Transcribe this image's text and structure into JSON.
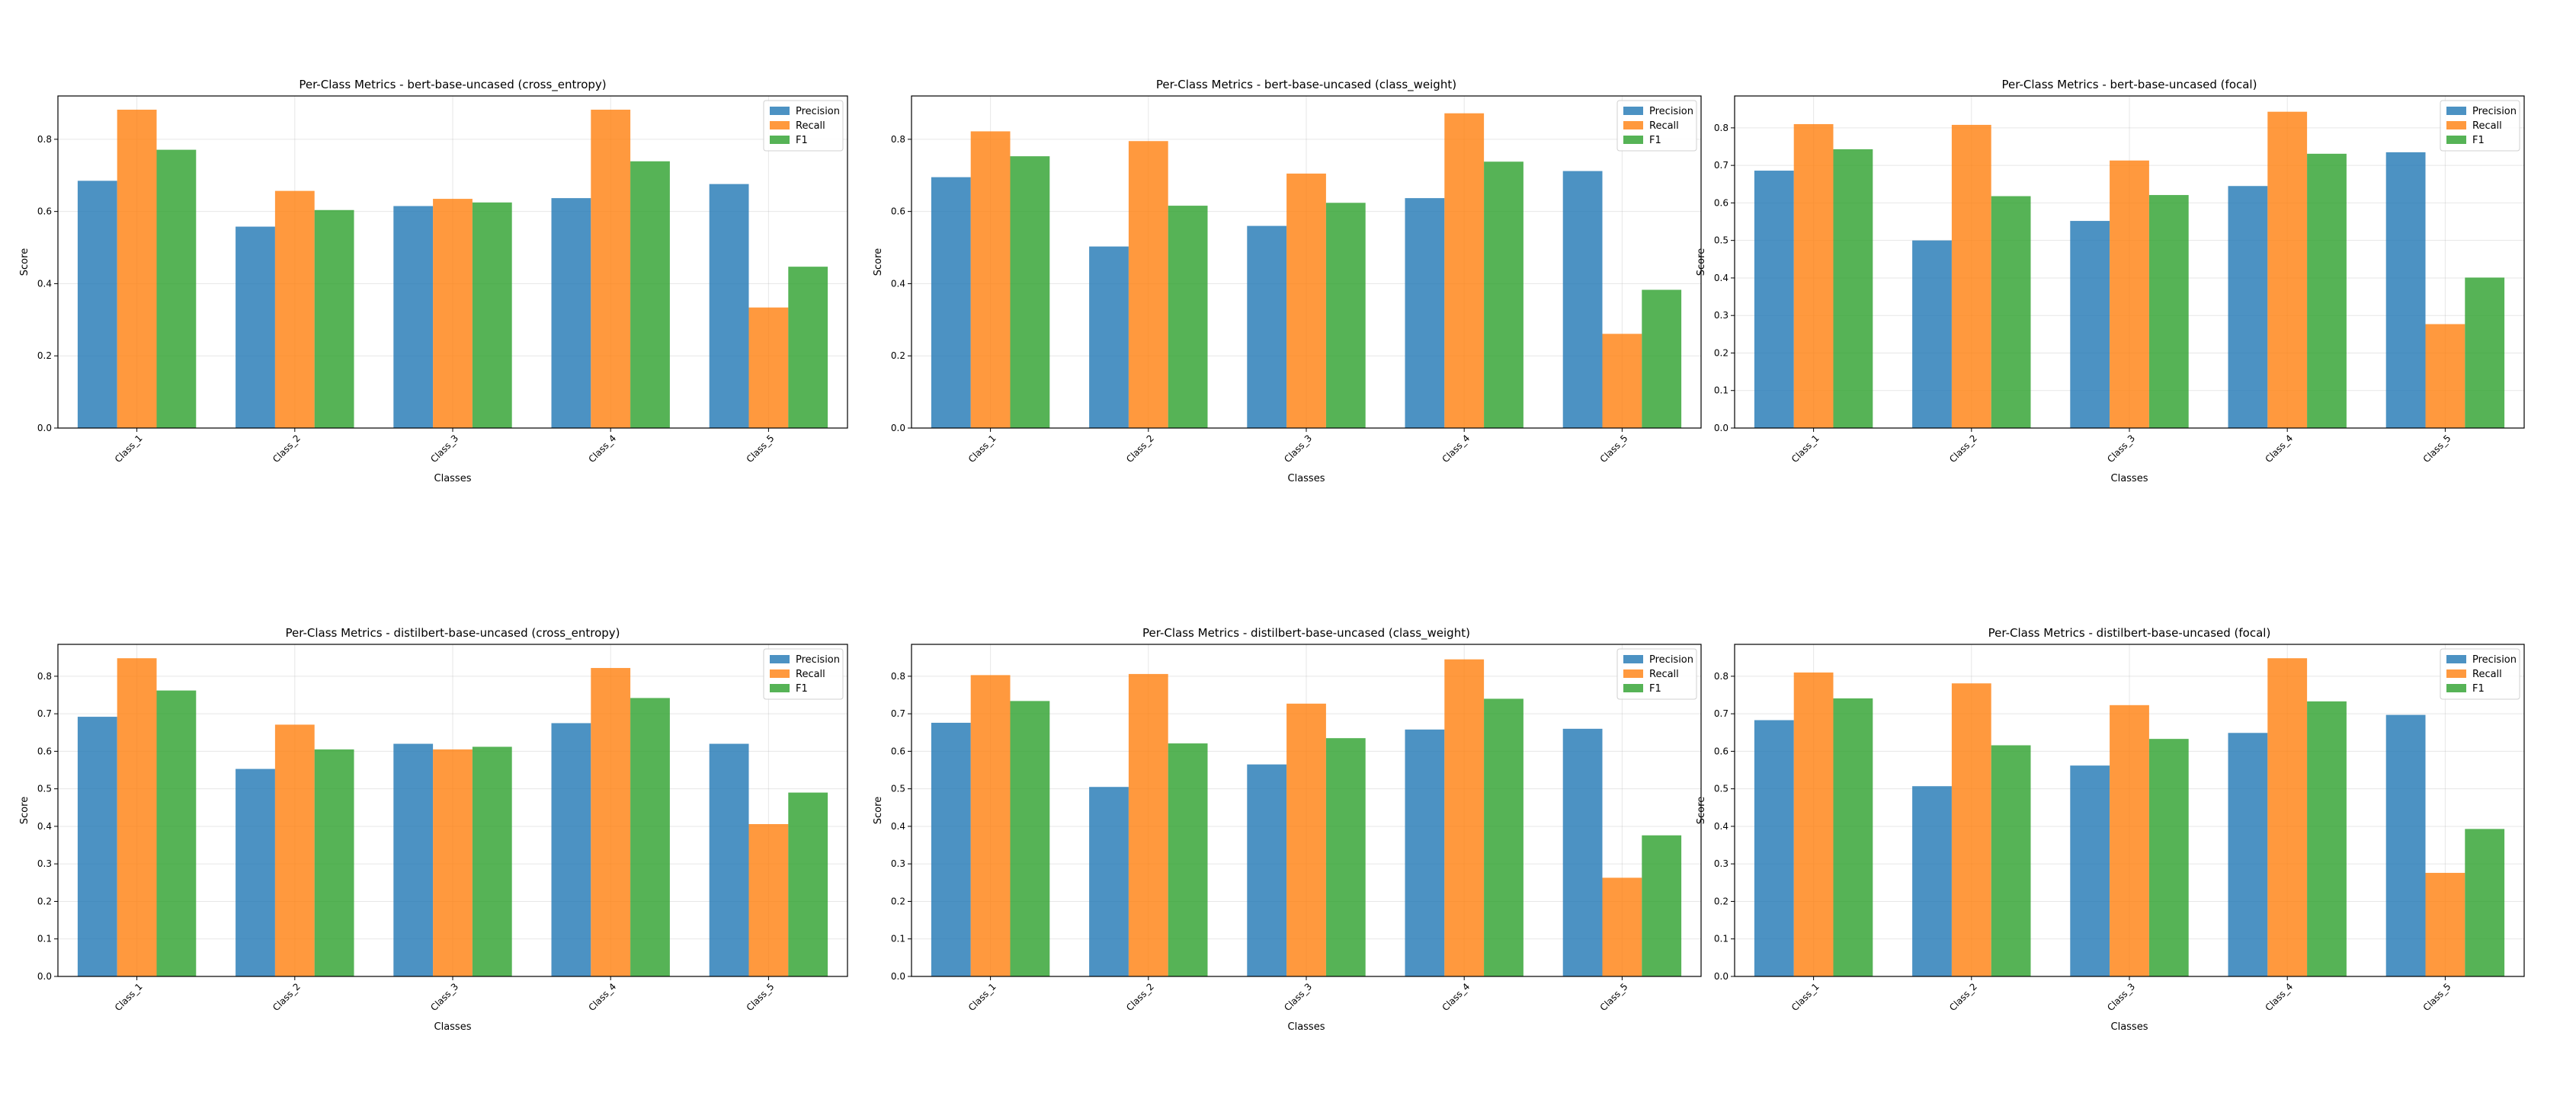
{
  "figure": {
    "colors": {
      "Precision": "#1f77b4",
      "Recall": "#ff7f0e",
      "F1": "#2ca02c"
    }
  },
  "chart_data": [
    {
      "type": "bar",
      "title": "Per-Class Metrics - bert-base-uncased (cross_entropy)",
      "xlabel": "Classes",
      "ylabel": "Score",
      "categories": [
        "Class_1",
        "Class_2",
        "Class_3",
        "Class_4",
        "Class_5"
      ],
      "ylim": [
        0,
        0.92
      ],
      "yticks": [
        "0.0",
        "0.2",
        "0.4",
        "0.6",
        "0.8"
      ],
      "legend": [
        "Precision",
        "Recall",
        "F1"
      ],
      "legend_position": "top-right",
      "grid": true,
      "series": [
        {
          "name": "Precision",
          "values": [
            0.685,
            0.558,
            0.615,
            0.637,
            0.676
          ]
        },
        {
          "name": "Recall",
          "values": [
            0.882,
            0.657,
            0.635,
            0.882,
            0.334
          ]
        },
        {
          "name": "F1",
          "values": [
            0.771,
            0.604,
            0.625,
            0.739,
            0.447
          ]
        }
      ]
    },
    {
      "type": "bar",
      "title": "Per-Class Metrics - bert-base-uncased (class_weight)",
      "xlabel": "Classes",
      "ylabel": "Score",
      "categories": [
        "Class_1",
        "Class_2",
        "Class_3",
        "Class_4",
        "Class_5"
      ],
      "ylim": [
        0,
        0.92
      ],
      "yticks": [
        "0.0",
        "0.2",
        "0.4",
        "0.6",
        "0.8"
      ],
      "legend": [
        "Precision",
        "Recall",
        "F1"
      ],
      "legend_position": "top-right",
      "grid": true,
      "series": [
        {
          "name": "Precision",
          "values": [
            0.695,
            0.503,
            0.56,
            0.637,
            0.712
          ]
        },
        {
          "name": "Recall",
          "values": [
            0.822,
            0.795,
            0.705,
            0.872,
            0.261
          ]
        },
        {
          "name": "F1",
          "values": [
            0.753,
            0.616,
            0.624,
            0.738,
            0.383
          ]
        }
      ]
    },
    {
      "type": "bar",
      "title": "Per-Class Metrics - bert-base-uncased (focal)",
      "xlabel": "Classes",
      "ylabel": "Score",
      "categories": [
        "Class_1",
        "Class_2",
        "Class_3",
        "Class_4",
        "Class_5"
      ],
      "ylim": [
        0,
        0.885
      ],
      "yticks": [
        "0.0",
        "0.1",
        "0.2",
        "0.3",
        "0.4",
        "0.5",
        "0.6",
        "0.7",
        "0.8"
      ],
      "legend": [
        "Precision",
        "Recall",
        "F1"
      ],
      "legend_position": "top-right",
      "grid": true,
      "series": [
        {
          "name": "Precision",
          "values": [
            0.686,
            0.5,
            0.552,
            0.645,
            0.735
          ]
        },
        {
          "name": "Recall",
          "values": [
            0.81,
            0.808,
            0.713,
            0.843,
            0.277
          ]
        },
        {
          "name": "F1",
          "values": [
            0.743,
            0.618,
            0.621,
            0.731,
            0.401
          ]
        }
      ]
    },
    {
      "type": "bar",
      "title": "Per-Class Metrics - distilbert-base-uncased (cross_entropy)",
      "xlabel": "Classes",
      "ylabel": "Score",
      "categories": [
        "Class_1",
        "Class_2",
        "Class_3",
        "Class_4",
        "Class_5"
      ],
      "ylim": [
        0,
        0.885
      ],
      "yticks": [
        "0.0",
        "0.1",
        "0.2",
        "0.3",
        "0.4",
        "0.5",
        "0.6",
        "0.7",
        "0.8"
      ],
      "legend": [
        "Precision",
        "Recall",
        "F1"
      ],
      "legend_position": "top-right",
      "grid": true,
      "series": [
        {
          "name": "Precision",
          "values": [
            0.692,
            0.553,
            0.62,
            0.675,
            0.62
          ]
        },
        {
          "name": "Recall",
          "values": [
            0.848,
            0.671,
            0.605,
            0.822,
            0.406
          ]
        },
        {
          "name": "F1",
          "values": [
            0.762,
            0.605,
            0.612,
            0.742,
            0.49
          ]
        }
      ]
    },
    {
      "type": "bar",
      "title": "Per-Class Metrics - distilbert-base-uncased (class_weight)",
      "xlabel": "Classes",
      "ylabel": "Score",
      "categories": [
        "Class_1",
        "Class_2",
        "Class_3",
        "Class_4",
        "Class_5"
      ],
      "ylim": [
        0,
        0.885
      ],
      "yticks": [
        "0.0",
        "0.1",
        "0.2",
        "0.3",
        "0.4",
        "0.5",
        "0.6",
        "0.7",
        "0.8"
      ],
      "legend": [
        "Precision",
        "Recall",
        "F1"
      ],
      "legend_position": "top-right",
      "grid": true,
      "series": [
        {
          "name": "Precision",
          "values": [
            0.676,
            0.505,
            0.565,
            0.658,
            0.66
          ]
        },
        {
          "name": "Recall",
          "values": [
            0.803,
            0.806,
            0.727,
            0.845,
            0.263
          ]
        },
        {
          "name": "F1",
          "values": [
            0.734,
            0.621,
            0.635,
            0.74,
            0.376
          ]
        }
      ]
    },
    {
      "type": "bar",
      "title": "Per-Class Metrics - distilbert-base-uncased (focal)",
      "xlabel": "Classes",
      "ylabel": "Score",
      "categories": [
        "Class_1",
        "Class_2",
        "Class_3",
        "Class_4",
        "Class_5"
      ],
      "ylim": [
        0,
        0.885
      ],
      "yticks": [
        "0.0",
        "0.1",
        "0.2",
        "0.3",
        "0.4",
        "0.5",
        "0.6",
        "0.7",
        "0.8"
      ],
      "legend": [
        "Precision",
        "Recall",
        "F1"
      ],
      "legend_position": "top-right",
      "grid": true,
      "series": [
        {
          "name": "Precision",
          "values": [
            0.683,
            0.507,
            0.562,
            0.649,
            0.697
          ]
        },
        {
          "name": "Recall",
          "values": [
            0.81,
            0.781,
            0.723,
            0.848,
            0.276
          ]
        },
        {
          "name": "F1",
          "values": [
            0.741,
            0.616,
            0.633,
            0.733,
            0.393
          ]
        }
      ]
    }
  ]
}
